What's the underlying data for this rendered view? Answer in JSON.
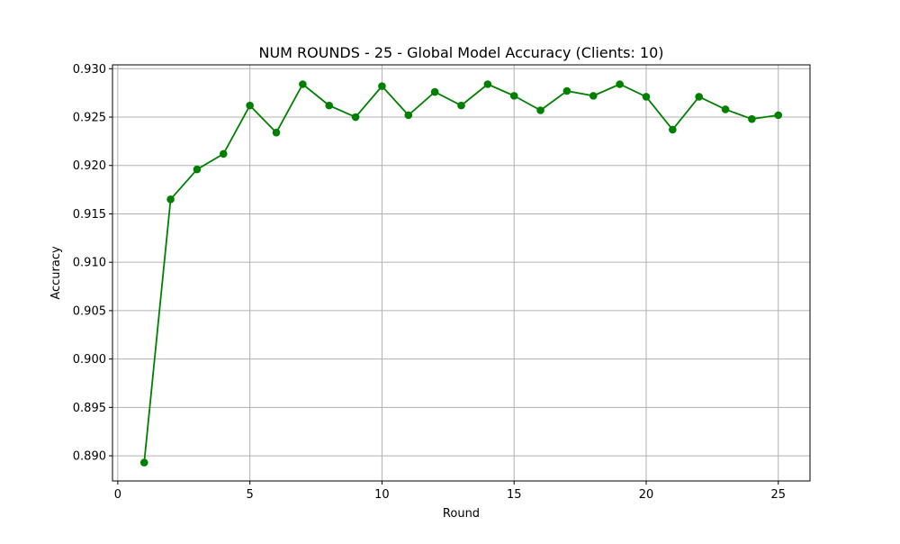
{
  "chart_data": {
    "type": "line",
    "title": "NUM ROUNDS - 25 - Global Model Accuracy (Clients: 10)",
    "xlabel": "Round",
    "ylabel": "Accuracy",
    "xlim": [
      -0.2,
      26.2
    ],
    "ylim": [
      0.8874,
      0.9304
    ],
    "xticks": [
      0,
      5,
      10,
      15,
      20,
      25
    ],
    "xtick_labels": [
      "0",
      "5",
      "10",
      "15",
      "20",
      "25"
    ],
    "yticks": [
      0.89,
      0.895,
      0.9,
      0.905,
      0.91,
      0.915,
      0.92,
      0.925,
      0.93
    ],
    "ytick_labels": [
      "0.890",
      "0.895",
      "0.900",
      "0.905",
      "0.910",
      "0.915",
      "0.920",
      "0.925",
      "0.930"
    ],
    "grid": true,
    "series": [
      {
        "name": "Accuracy",
        "color": "#008000",
        "marker": "circle",
        "x": [
          1,
          2,
          3,
          4,
          5,
          6,
          7,
          8,
          9,
          10,
          11,
          12,
          13,
          14,
          15,
          16,
          17,
          18,
          19,
          20,
          21,
          22,
          23,
          24,
          25
        ],
        "values": [
          0.8893,
          0.9165,
          0.9196,
          0.9212,
          0.9262,
          0.9234,
          0.9284,
          0.9262,
          0.925,
          0.9282,
          0.9252,
          0.9276,
          0.9262,
          0.9284,
          0.9272,
          0.9257,
          0.9277,
          0.9272,
          0.9284,
          0.9271,
          0.9237,
          0.9271,
          0.9258,
          0.9248,
          0.9252
        ]
      }
    ]
  }
}
